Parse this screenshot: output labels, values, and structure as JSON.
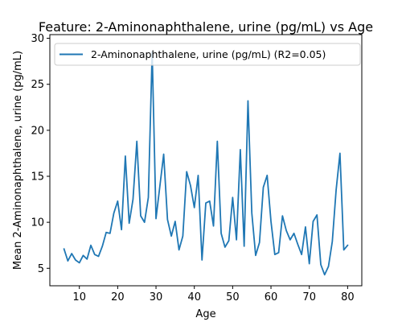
{
  "chart_data": {
    "type": "line",
    "title": "Feature: 2-Aminonaphthalene, urine (pg/mL) vs Age",
    "xlabel": "Age",
    "ylabel": "Mean 2-Aminonaphthalene, urine (pg/mL)",
    "xlim": [
      2.3,
      83.7
    ],
    "ylim": [
      3.1,
      30.4
    ],
    "xticks": [
      10,
      20,
      30,
      40,
      50,
      60,
      70,
      80
    ],
    "yticks": [
      5,
      10,
      15,
      20,
      25,
      30
    ],
    "grid": false,
    "legend_position": "top-left",
    "series": [
      {
        "name": "2-Aminonaphthalene, urine (pg/mL) (R2=0.05)",
        "color": "#1f77b4",
        "x": [
          6,
          7,
          8,
          9,
          10,
          11,
          12,
          13,
          14,
          15,
          16,
          17,
          18,
          19,
          20,
          21,
          22,
          23,
          24,
          25,
          26,
          27,
          28,
          29,
          30,
          31,
          32,
          33,
          34,
          35,
          36,
          37,
          38,
          39,
          40,
          41,
          42,
          43,
          44,
          45,
          46,
          47,
          48,
          49,
          50,
          51,
          52,
          53,
          54,
          55,
          56,
          57,
          58,
          59,
          60,
          61,
          62,
          63,
          64,
          65,
          66,
          67,
          68,
          69,
          70,
          71,
          72,
          73,
          74,
          75,
          76,
          77,
          78,
          79,
          80
        ],
        "y": [
          7.1,
          5.8,
          6.6,
          5.9,
          5.6,
          6.4,
          6.0,
          7.5,
          6.5,
          6.3,
          7.4,
          8.9,
          8.8,
          11.0,
          12.3,
          9.2,
          17.2,
          9.9,
          12.5,
          18.8,
          10.7,
          10.0,
          12.7,
          28.5,
          10.4,
          13.9,
          17.4,
          10.3,
          8.5,
          10.1,
          7.0,
          8.5,
          15.5,
          14.0,
          11.6,
          15.1,
          5.9,
          12.1,
          12.3,
          9.6,
          18.8,
          8.8,
          7.3,
          8.0,
          12.7,
          8.1,
          17.9,
          7.4,
          23.2,
          11.0,
          6.4,
          7.8,
          13.8,
          15.1,
          10.1,
          6.5,
          6.7,
          10.7,
          9.1,
          8.1,
          8.8,
          7.6,
          6.5,
          9.5,
          5.5,
          10.1,
          10.8,
          5.4,
          4.3,
          5.2,
          7.9,
          13.5,
          17.5,
          7.0,
          7.5
        ]
      }
    ]
  }
}
